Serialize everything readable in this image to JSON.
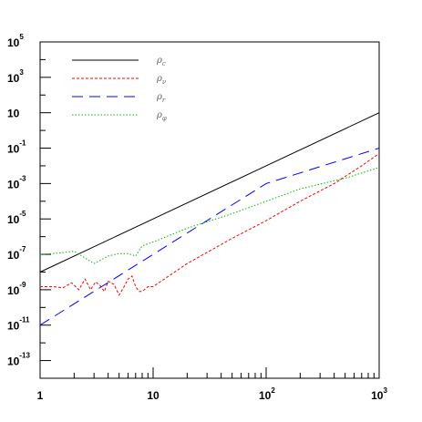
{
  "chart_data": {
    "type": "line",
    "xscale": "log",
    "yscale": "log",
    "xlim": [
      1,
      1000
    ],
    "ylim": [
      1e-14,
      100000.0
    ],
    "x_ticks": [
      {
        "base": "1",
        "exp": ""
      },
      {
        "base": "10",
        "exp": ""
      },
      {
        "base": "10",
        "exp": "2"
      },
      {
        "base": "10",
        "exp": "3"
      }
    ],
    "y_ticks": [
      {
        "base": "10",
        "exp": "5"
      },
      {
        "base": "10",
        "exp": "3"
      },
      {
        "base": "10",
        "exp": ""
      },
      {
        "base": "10",
        "exp": "-1"
      },
      {
        "base": "10",
        "exp": "-3"
      },
      {
        "base": "10",
        "exp": "-5"
      },
      {
        "base": "10",
        "exp": "-7"
      },
      {
        "base": "10",
        "exp": "-9"
      },
      {
        "base": "10",
        "exp": "-11"
      },
      {
        "base": "10",
        "exp": "-13"
      }
    ],
    "legend": {
      "position": "top-left"
    },
    "series": [
      {
        "name": "ρc",
        "symbol": "ρ",
        "sub": "c",
        "color": "#000000",
        "dash": "",
        "x": [
          1,
          10,
          100,
          1000
        ],
        "y": [
          1e-08,
          1e-05,
          0.01,
          10
        ]
      },
      {
        "name": "ρν",
        "symbol": "ρ",
        "sub": "ν",
        "color": "#ff0000",
        "dash": "3,2",
        "x": [
          1,
          1.3,
          1.6,
          1.9,
          2.2,
          2.5,
          2.8,
          3.1,
          3.4,
          3.7,
          4.0,
          4.5,
          5.0,
          5.5,
          6.0,
          6.5,
          7.0,
          7.5,
          8.0,
          9.0,
          10,
          20,
          50,
          100,
          200,
          400,
          700,
          1000
        ],
        "y": [
          1.5e-09,
          1.5e-09,
          1.3e-09,
          2.5e-09,
          1e-09,
          4e-09,
          1e-09,
          2.8e-09,
          1.7e-09,
          8e-10,
          3e-09,
          2e-09,
          5e-10,
          1.4e-09,
          4e-09,
          6e-09,
          1.5e-09,
          8e-10,
          8e-10,
          1.5e-09,
          1.5e-09,
          3e-08,
          8e-07,
          8e-06,
          0.0001,
          0.001,
          0.01,
          0.05
        ]
      },
      {
        "name": "ρr",
        "symbol": "ρ",
        "sub": "r",
        "color": "#0000ff",
        "dash": "12,7",
        "x": [
          1,
          10,
          100,
          1000
        ],
        "y": [
          1e-11,
          1e-07,
          0.001,
          0.1
        ]
      },
      {
        "name": "ρφ",
        "symbol": "ρ",
        "sub": "φ",
        "color": "#00bb00",
        "dash": "1.5,2",
        "x": [
          1,
          1.5,
          2,
          3,
          4,
          5,
          6,
          7,
          8,
          10,
          20,
          50,
          100,
          200,
          500,
          1000
        ],
        "y": [
          1e-07,
          1.2e-07,
          1.5e-07,
          3e-08,
          8e-08,
          1.1e-07,
          1.1e-07,
          8e-08,
          3e-07,
          5e-07,
          3e-06,
          2e-05,
          0.0001,
          0.0005,
          0.002,
          0.008
        ]
      }
    ]
  }
}
